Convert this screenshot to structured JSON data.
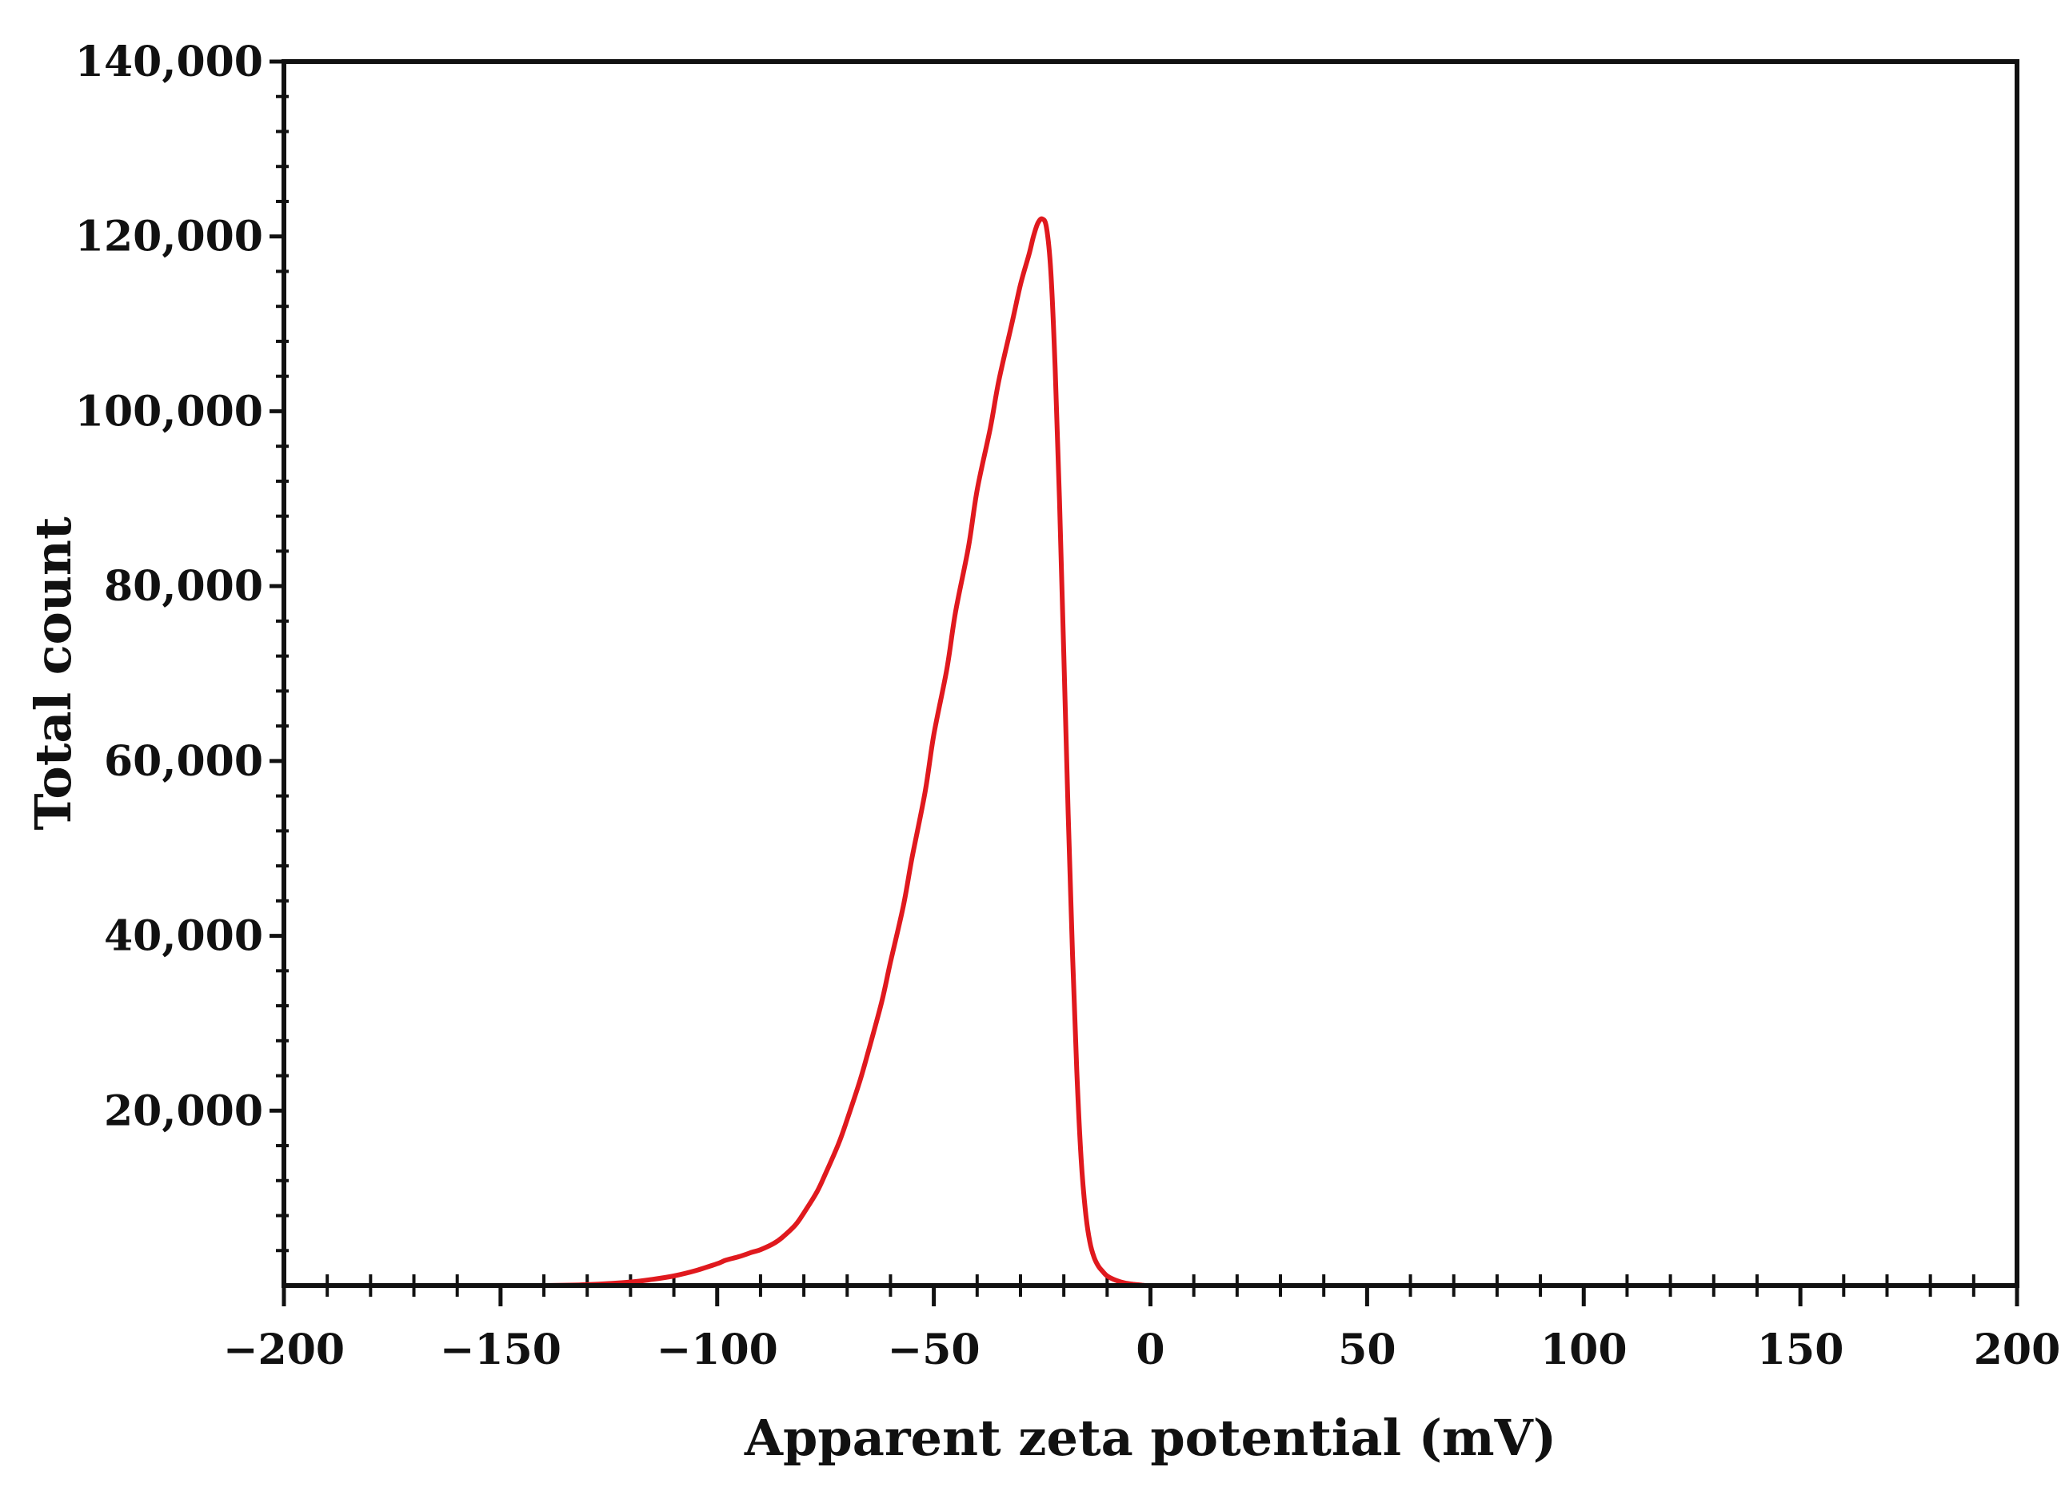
{
  "chart_data": {
    "type": "line",
    "xlabel": "Apparent zeta potential (mV)",
    "ylabel": "Total count",
    "xlim": [
      -200,
      200
    ],
    "ylim": [
      0,
      140000
    ],
    "x_ticks": [
      -200,
      -150,
      -100,
      -50,
      0,
      50,
      100,
      150,
      200
    ],
    "x_tick_labels": [
      "−200",
      "−150",
      "−100",
      "−50",
      "0",
      "50",
      "100",
      "150",
      "200"
    ],
    "y_ticks": [
      20000,
      40000,
      60000,
      80000,
      100000,
      120000,
      140000
    ],
    "y_tick_labels": [
      "20,000",
      "40,000",
      "60,000",
      "80,000",
      "100,000",
      "120,000",
      "140,000"
    ],
    "grid": false,
    "legend": "none",
    "series": [
      {
        "color": "#e0191e",
        "x": [
          -150,
          -140,
          -130,
          -120,
          -115,
          -110,
          -105,
          -100,
          -98,
          -95,
          -92,
          -90,
          -87,
          -85,
          -82,
          -80,
          -77,
          -75,
          -72,
          -70,
          -67,
          -65,
          -62,
          -60,
          -57,
          -55,
          -52,
          -50,
          -47,
          -45,
          -42,
          -40,
          -37,
          -35,
          -32,
          -30,
          -28,
          -27,
          -26,
          -25,
          -24,
          -23,
          -22,
          -21,
          -20,
          -19,
          -18,
          -17,
          -16,
          -15,
          -14,
          -13,
          -12,
          -11,
          -10,
          -8,
          -6,
          -4,
          -2,
          0,
          10,
          50,
          100,
          150
        ],
        "y": [
          0,
          0,
          100,
          400,
          700,
          1100,
          1700,
          2500,
          2900,
          3300,
          3800,
          4100,
          4800,
          5500,
          6900,
          8300,
          10700,
          12800,
          16200,
          19000,
          23500,
          27000,
          32500,
          37000,
          43500,
          49000,
          56500,
          63000,
          70500,
          77000,
          84500,
          91000,
          98000,
          103500,
          110000,
          114500,
          118000,
          120000,
          121500,
          122000,
          121000,
          116000,
          105000,
          90000,
          72000,
          54000,
          38000,
          24500,
          14500,
          8500,
          5000,
          3200,
          2200,
          1600,
          1100,
          600,
          300,
          150,
          50,
          0,
          0,
          0,
          0,
          0
        ]
      }
    ]
  }
}
